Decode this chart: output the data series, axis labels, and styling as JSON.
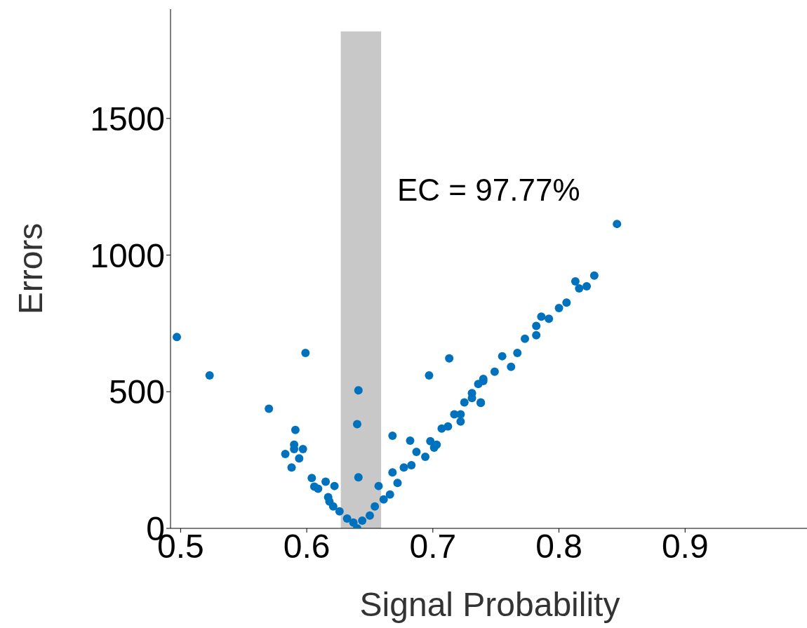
{
  "chart_data": {
    "type": "scatter",
    "xlabel": "Signal Probability",
    "ylabel": "Errors",
    "annotations": [
      "EC  = 97.77%"
    ],
    "color": "#0072bd",
    "marker": "circle",
    "grid": false,
    "xlim": [
      0.492,
      1.0
    ],
    "xticks": [
      0.5,
      0.6,
      0.7,
      0.8,
      0.9
    ],
    "ylim": [
      0,
      1900
    ],
    "yticks": [
      0,
      500,
      1000,
      1500
    ],
    "bands": [
      {
        "axis": "x",
        "from": 0.627,
        "to": 0.659,
        "color": "#c8c8c8"
      }
    ],
    "x": [
      0.497,
      0.523,
      0.57,
      0.599,
      0.591,
      0.59,
      0.59,
      0.597,
      0.583,
      0.594,
      0.588,
      0.604,
      0.615,
      0.622,
      0.609,
      0.606,
      0.617,
      0.618,
      0.621,
      0.626,
      0.632,
      0.637,
      0.64,
      0.644,
      0.65,
      0.654,
      0.641,
      0.64,
      0.641,
      0.657,
      0.668,
      0.682,
      0.697,
      0.713,
      0.661,
      0.668,
      0.677,
      0.687,
      0.698,
      0.707,
      0.717,
      0.725,
      0.731,
      0.736,
      0.74,
      0.738,
      0.722,
      0.701,
      0.683,
      0.672,
      0.666,
      0.694,
      0.703,
      0.712,
      0.722,
      0.731,
      0.738,
      0.74,
      0.749,
      0.755,
      0.762,
      0.767,
      0.773,
      0.782,
      0.782,
      0.786,
      0.792,
      0.8,
      0.806,
      0.813,
      0.816,
      0.822,
      0.828,
      0.846
    ],
    "values": [
      700,
      560,
      438,
      642,
      360,
      306,
      290,
      290,
      272,
      256,
      223,
      184,
      171,
      155,
      145,
      153,
      114,
      98,
      80,
      62,
      36,
      21,
      0,
      28,
      47,
      80,
      505,
      381,
      187,
      155,
      339,
      321,
      560,
      622,
      106,
      205,
      223,
      280,
      319,
      365,
      417,
      461,
      495,
      528,
      547,
      459,
      391,
      295,
      231,
      166,
      124,
      262,
      306,
      373,
      417,
      477,
      461,
      539,
      573,
      630,
      591,
      642,
      694,
      707,
      741,
      775,
      767,
      806,
      826,
      904,
      878,
      886,
      925,
      1114
    ]
  }
}
